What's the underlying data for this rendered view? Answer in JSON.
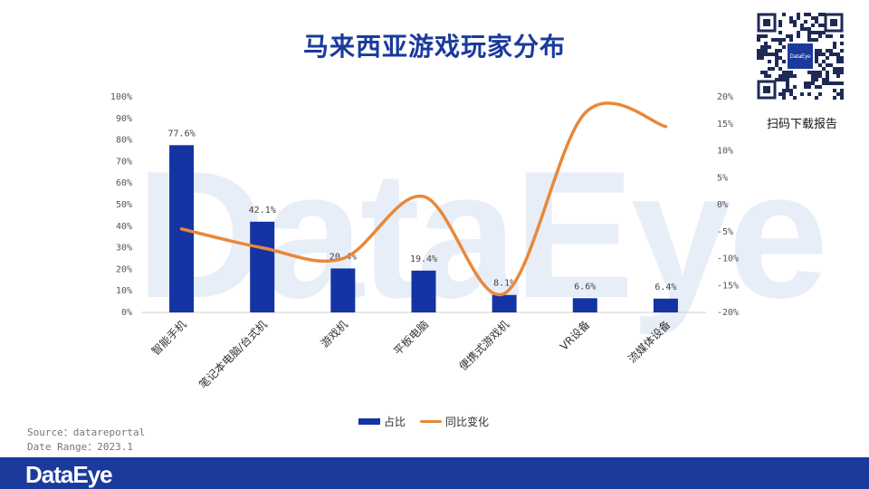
{
  "title": "马来西亚游戏玩家分布",
  "watermark": "DataEye",
  "qr": {
    "logo_text": "DataEye",
    "label": "扫码下载报告"
  },
  "source": {
    "line1": "Source：datareportal",
    "line2": "Date Range：2023.1"
  },
  "footer": {
    "brand": "DataEye"
  },
  "colors": {
    "bar": "#1434a4",
    "line": "#e8883a",
    "title": "#1a3a9c",
    "footer": "#1a3a9c"
  },
  "chart_data": {
    "type": "bar",
    "categories": [
      "智能手机",
      "笔记本电脑/台式机",
      "游戏机",
      "平板电脑",
      "便携式游戏机",
      "VR设备",
      "流媒体设备"
    ],
    "series": [
      {
        "name": "占比",
        "type": "bar",
        "axis": "left",
        "values": [
          77.6,
          42.1,
          20.4,
          19.4,
          8.1,
          6.6,
          6.4
        ]
      },
      {
        "name": "同比变化",
        "type": "line",
        "axis": "right",
        "values": [
          -4.5,
          -8.0,
          -10.0,
          1.5,
          -16.5,
          17.0,
          14.5
        ]
      }
    ],
    "data_labels": [
      "77.6%",
      "42.1%",
      "20.4%",
      "19.4%",
      "8.1%",
      "6.6%",
      "6.4%"
    ],
    "y_left": {
      "range": [
        0,
        100
      ],
      "ticks": [
        "0%",
        "10%",
        "20%",
        "30%",
        "40%",
        "50%",
        "60%",
        "70%",
        "80%",
        "90%",
        "100%"
      ]
    },
    "y_right": {
      "range": [
        -20,
        20
      ],
      "ticks": [
        "-20%",
        "-15%",
        "-10%",
        "-5%",
        "0%",
        "5%",
        "10%",
        "15%",
        "20%"
      ]
    },
    "grid": false,
    "legend": "bottom"
  }
}
